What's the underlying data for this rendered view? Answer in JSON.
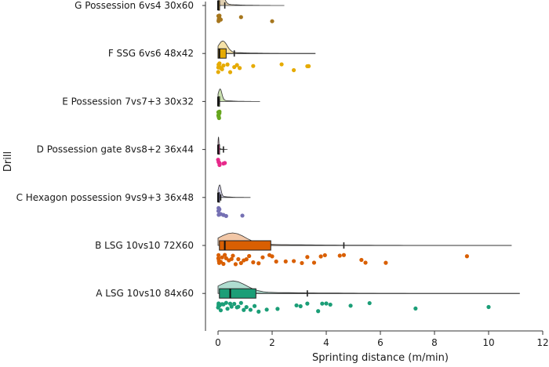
{
  "chart_data": {
    "type": "raincloud",
    "orientation": "horizontal",
    "xlabel": "Sprinting distance (m/min)",
    "ylabel": "Drill",
    "xlim": [
      0,
      12
    ],
    "xticks": [
      0,
      2,
      4,
      6,
      8,
      10,
      12
    ],
    "grid": false,
    "legend": "none",
    "categories": [
      {
        "label": "G Possession 6vs4 30x60",
        "color": "#a6761d",
        "box": {
          "q1": 0,
          "median": 0,
          "q3": 0.05,
          "whisker_high": 0.1
        },
        "mean": 0.25,
        "density_max": 2.45,
        "points": [
          0,
          0,
          0,
          0,
          0,
          0,
          0.02,
          0.05,
          0.1,
          0.85,
          2.0
        ]
      },
      {
        "label": "F SSG 6vs6 48x42",
        "color": "#e6ab02",
        "box": {
          "q1": 0,
          "median": 0.05,
          "q3": 0.3,
          "whisker_high": 3.6
        },
        "mean": 0.6,
        "density_max": 3.6,
        "points": [
          0,
          0,
          0,
          0,
          0,
          0.02,
          0.05,
          0.1,
          0.15,
          0.2,
          0.35,
          0.45,
          0.6,
          0.7,
          0.8,
          1.3,
          2.35,
          2.8,
          3.3,
          3.35
        ]
      },
      {
        "label": "E Possession 7vs7+3 30x32",
        "color": "#66a61e",
        "box": {
          "q1": 0,
          "median": 0,
          "q3": 0,
          "whisker_high": 0
        },
        "mean": 0.05,
        "density_max": 1.55,
        "points": [
          0,
          0,
          0,
          0,
          0,
          0,
          0.02
        ]
      },
      {
        "label": "D Possession gate 8vs8+2 36x44",
        "color": "#e7298a",
        "box": {
          "q1": 0,
          "median": 0,
          "q3": 0,
          "whisker_high": 0
        },
        "mean": 0.2,
        "density_max": 0.35,
        "points": [
          0,
          0,
          0,
          0.02,
          0.05,
          0.2,
          0.25
        ]
      },
      {
        "label": "C Hexagon possession 9vs9+3 36x48",
        "color": "#7570b3",
        "box": {
          "q1": 0,
          "median": 0,
          "q3": 0.05,
          "whisker_high": 0.1
        },
        "mean": 0.1,
        "density_max": 1.2,
        "points": [
          0,
          0,
          0,
          0.02,
          0.05,
          0.1,
          0.2,
          0.3,
          0.9
        ]
      },
      {
        "label": "B LSG 10vs10 72X60",
        "color": "#d95f02",
        "box": {
          "q1": 0.05,
          "median": 0.25,
          "q3": 1.95,
          "whisker_high": 10.85
        },
        "mean": 4.65,
        "density_max": 10.85,
        "points": [
          0,
          0,
          0,
          0,
          0.02,
          0.05,
          0.1,
          0.15,
          0.2,
          0.25,
          0.3,
          0.4,
          0.5,
          0.55,
          0.65,
          0.75,
          0.85,
          0.95,
          1.05,
          1.15,
          1.3,
          1.5,
          1.65,
          1.9,
          2.0,
          2.15,
          2.5,
          2.8,
          3.1,
          3.3,
          3.55,
          3.8,
          3.95,
          4.5,
          4.65,
          5.3,
          5.45,
          6.2,
          9.2
        ]
      },
      {
        "label": "A LSG 10vs10 84x60",
        "color": "#1b9e77",
        "box": {
          "q1": 0.05,
          "median": 0.45,
          "q3": 1.4,
          "whisker_high": 11.15
        },
        "mean": 3.3,
        "density_max": 11.15,
        "points": [
          0,
          0,
          0,
          0.02,
          0.05,
          0.1,
          0.15,
          0.2,
          0.3,
          0.35,
          0.45,
          0.5,
          0.6,
          0.7,
          0.75,
          0.85,
          0.95,
          1.05,
          1.2,
          1.35,
          1.5,
          1.8,
          2.2,
          2.9,
          3.05,
          3.3,
          3.7,
          3.85,
          4.0,
          4.15,
          4.9,
          5.6,
          7.3,
          10.0
        ]
      }
    ]
  }
}
